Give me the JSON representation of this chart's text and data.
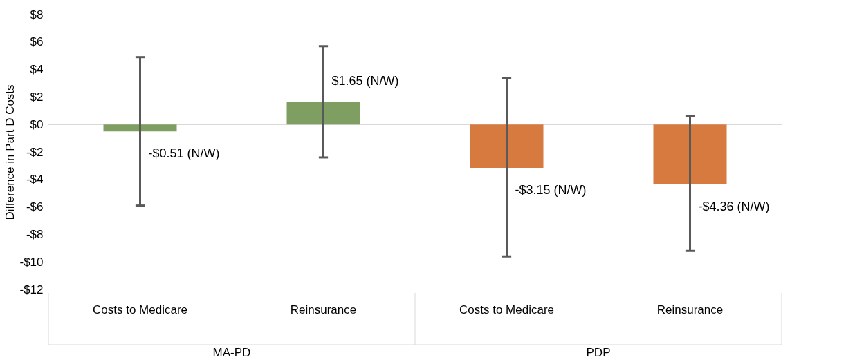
{
  "chart_data": {
    "type": "bar",
    "ylabel": "Difference in Part D Costs",
    "categories": [
      "Costs to Medicare",
      "Reinsurance",
      "Costs to Medicare",
      "Reinsurance"
    ],
    "values": [
      -0.51,
      1.65,
      -3.15,
      -4.36
    ],
    "colors": [
      "#7f9e61",
      "#7f9e61",
      "#d67a40",
      "#d67a40"
    ],
    "errors": [
      [
        -5.9,
        4.9
      ],
      [
        -2.4,
        5.7
      ],
      [
        -9.6,
        3.4
      ],
      [
        -9.2,
        0.6
      ]
    ],
    "value_labels": [
      "-$0.51 (N/W)",
      "$1.65 (N/W)",
      "-$3.15 (N/W)",
      "-$4.36 (N/W)"
    ],
    "annotations": [
      "MA-PD",
      "PDP"
    ],
    "ylim": [
      -12,
      8
    ],
    "yticks": [
      {
        "value": -12,
        "label": "-$12"
      },
      {
        "value": -10,
        "label": "-$10"
      },
      {
        "value": -8,
        "label": "-$8"
      },
      {
        "value": -6,
        "label": "-$6"
      },
      {
        "value": -4,
        "label": "-$4"
      },
      {
        "value": -2,
        "label": "-$2"
      },
      {
        "value": 0,
        "label": "$0"
      },
      {
        "value": 2,
        "label": "$2"
      },
      {
        "value": 4,
        "label": "$4"
      },
      {
        "value": 6,
        "label": "$6"
      },
      {
        "value": 8,
        "label": "$8"
      }
    ],
    "ref_lines": [
      {
        "axis": "y",
        "value": 0,
        "color": "#d9d9d9"
      }
    ],
    "grid": false
  }
}
